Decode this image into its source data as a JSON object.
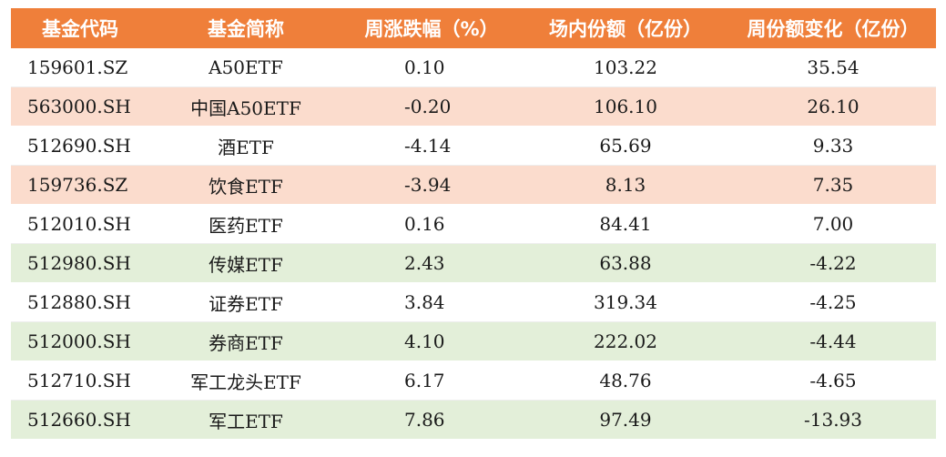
{
  "columns": [
    "基金代码",
    "基金简称",
    "周涨跌幅（%）",
    "场内份额（亿份）",
    "周份额变化（亿份）"
  ],
  "rows": [
    {
      "code": "159601.SZ",
      "name": "A50ETF",
      "change": "0.10",
      "shares": "103.22",
      "delta": "35.54",
      "style": "white"
    },
    {
      "code": "563000.SH",
      "name": "中国A50ETF",
      "change": "-0.20",
      "shares": "106.10",
      "delta": "26.10",
      "style": "peach"
    },
    {
      "code": "512690.SH",
      "name": "酒ETF",
      "change": "-4.14",
      "shares": "65.69",
      "delta": "9.33",
      "style": "white"
    },
    {
      "code": "159736.SZ",
      "name": "饮食ETF",
      "change": "-3.94",
      "shares": "8.13",
      "delta": "7.35",
      "style": "peach"
    },
    {
      "code": "512010.SH",
      "name": "医药ETF",
      "change": "0.16",
      "shares": "84.41",
      "delta": "7.00",
      "style": "white"
    },
    {
      "code": "512980.SH",
      "name": "传媒ETF",
      "change": "2.43",
      "shares": "63.88",
      "delta": "-4.22",
      "style": "green"
    },
    {
      "code": "512880.SH",
      "name": "证券ETF",
      "change": "3.84",
      "shares": "319.34",
      "delta": "-4.25",
      "style": "white"
    },
    {
      "code": "512000.SH",
      "name": "券商ETF",
      "change": "4.10",
      "shares": "222.02",
      "delta": "-4.44",
      "style": "green"
    },
    {
      "code": "512710.SH",
      "name": "军工龙头ETF",
      "change": "6.17",
      "shares": "48.76",
      "delta": "-4.65",
      "style": "white"
    },
    {
      "code": "512660.SH",
      "name": "军工ETF",
      "change": "7.86",
      "shares": "97.49",
      "delta": "-13.93",
      "style": "green"
    }
  ],
  "colors": {
    "header": "#ef7f3a",
    "peach": "#fbdccd",
    "green": "#e3efd9"
  }
}
